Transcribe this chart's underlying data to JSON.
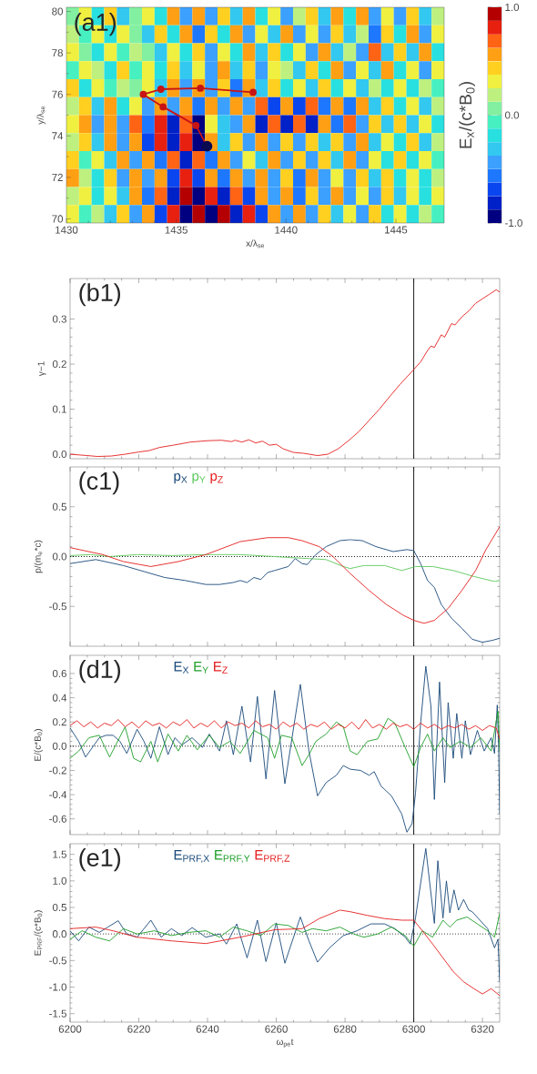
{
  "chart_data": [
    {
      "type": "heatmap",
      "clabel": "E$_{x}$/(c*B$_{0}$)",
      "categories": [
        null,
        null,
        null,
        null,
        null,
        null,
        null,
        null,
        null,
        null,
        null,
        null,
        null,
        null,
        null,
        null,
        null,
        null,
        null,
        null,
        null,
        null,
        null,
        null,
        null,
        null,
        null,
        null,
        null,
        null
      ],
      "y_categories": [
        null,
        null,
        null,
        null,
        null,
        null,
        null,
        null,
        null,
        null,
        null,
        null
      ],
      "cells": [
        [
          0.1,
          0.3,
          -0.2,
          0.4,
          -0.3,
          0.1,
          0.3,
          -0.2,
          0.5,
          -0.4,
          0.5,
          -0.5,
          0.4,
          -0.3,
          0.5,
          -0.2,
          0.3,
          -0.5,
          0.2,
          0.4,
          -0.3,
          0.5,
          -0.2,
          0.6,
          -0.5,
          0.3,
          -0.4,
          0.4,
          -0.3,
          0.2
        ],
        [
          0.2,
          -0.1,
          0.3,
          -0.2,
          0.3,
          0.0,
          -0.3,
          0.4,
          -0.2,
          0.5,
          -0.6,
          0.4,
          -0.2,
          0.6,
          -0.4,
          0.3,
          -0.3,
          0.5,
          -0.4,
          0.3,
          -0.5,
          0.4,
          -0.3,
          0.2,
          -0.6,
          0.4,
          -0.2,
          0.5,
          -0.4,
          0.3
        ],
        [
          0.3,
          0.1,
          -0.2,
          0.3,
          -0.1,
          0.2,
          0.1,
          -0.3,
          0.3,
          -0.2,
          0.4,
          -0.5,
          0.3,
          -0.2,
          0.5,
          -0.3,
          0.4,
          -0.2,
          0.3,
          -0.4,
          0.5,
          -0.3,
          0.2,
          -0.4,
          0.7,
          -0.3,
          0.4,
          -0.3,
          0.5,
          -0.2
        ],
        [
          -0.1,
          0.3,
          0.2,
          -0.2,
          0.4,
          -0.1,
          0.3,
          -0.2,
          0.4,
          -0.3,
          0.3,
          -0.4,
          0.5,
          -0.3,
          0.4,
          -0.5,
          0.3,
          0.2,
          -0.3,
          0.4,
          -0.2,
          0.5,
          -0.4,
          0.3,
          -0.3,
          0.5,
          -0.2,
          0.3,
          -0.4,
          0.3
        ],
        [
          0.4,
          -0.2,
          0.3,
          -0.1,
          0.2,
          0.0,
          0.3,
          -0.3,
          0.5,
          -0.4,
          0.5,
          -0.5,
          0.4,
          -0.6,
          0.6,
          -0.3,
          0.4,
          -0.2,
          0.3,
          -0.3,
          0.4,
          -0.2,
          0.3,
          -0.3,
          0.2,
          -0.2,
          0.3,
          -0.2,
          0.2,
          -0.1
        ],
        [
          0.2,
          0.4,
          -0.3,
          0.5,
          -0.2,
          0.3,
          -0.4,
          0.5,
          -0.5,
          0.6,
          -0.6,
          0.5,
          -0.4,
          0.6,
          -0.5,
          0.7,
          -0.7,
          0.6,
          -0.7,
          0.7,
          -0.6,
          0.5,
          -0.6,
          0.6,
          -0.3,
          0.4,
          -0.2,
          0.3,
          -0.3,
          0.2
        ],
        [
          0.3,
          0.5,
          -0.4,
          0.6,
          -0.5,
          0.7,
          -0.6,
          0.8,
          -0.8,
          0.7,
          -1.0,
          0.3,
          -0.3,
          -0.5,
          0.6,
          -0.8,
          0.7,
          -0.8,
          0.7,
          -0.8,
          0.6,
          -0.6,
          0.7,
          -0.5,
          0.4,
          -0.3,
          0.4,
          -0.3,
          0.3,
          -0.2
        ],
        [
          0.2,
          0.4,
          -0.3,
          0.5,
          -0.5,
          0.6,
          -0.7,
          0.8,
          -0.8,
          0.8,
          -0.9,
          0.5,
          -0.3,
          0.4,
          -0.5,
          0.5,
          -0.4,
          0.4,
          -0.5,
          0.4,
          -0.3,
          0.4,
          -0.4,
          0.5,
          -0.3,
          0.3,
          -0.2,
          0.4,
          -0.3,
          0.2
        ],
        [
          0.4,
          -0.1,
          0.3,
          -0.3,
          0.5,
          -0.4,
          0.6,
          -0.6,
          0.7,
          -0.8,
          0.7,
          -0.6,
          0.5,
          -0.4,
          0.3,
          -0.3,
          0.5,
          -0.5,
          0.4,
          -0.5,
          0.4,
          -0.3,
          0.5,
          -0.4,
          0.3,
          -0.2,
          0.4,
          -0.2,
          0.3,
          -0.1
        ],
        [
          0.5,
          0.2,
          -0.2,
          0.4,
          -0.4,
          0.5,
          -0.5,
          0.6,
          -0.7,
          0.8,
          -0.7,
          0.6,
          -0.6,
          0.5,
          -0.4,
          0.5,
          -0.5,
          0.4,
          -0.6,
          0.5,
          -0.4,
          0.3,
          -0.5,
          0.4,
          -0.3,
          0.4,
          -0.2,
          0.3,
          -0.2,
          0.2
        ],
        [
          0.2,
          0.3,
          -0.2,
          0.3,
          -0.3,
          0.5,
          -0.6,
          0.7,
          -0.8,
          0.9,
          -0.9,
          0.8,
          -0.8,
          0.7,
          -0.7,
          0.6,
          -0.5,
          0.5,
          -0.6,
          0.4,
          -0.5,
          0.5,
          -0.4,
          0.3,
          -0.5,
          0.4,
          -0.3,
          0.3,
          -0.2,
          0.3
        ],
        [
          0.3,
          -0.1,
          0.2,
          -0.3,
          0.4,
          -0.4,
          0.5,
          -0.7,
          0.8,
          -0.9,
          0.9,
          -0.9,
          0.9,
          -0.8,
          0.8,
          -0.7,
          0.6,
          -0.5,
          0.5,
          -0.4,
          0.4,
          -0.3,
          0.3,
          -0.4,
          0.4,
          -0.2,
          0.3,
          -0.2,
          0.2,
          -0.1
        ]
      ],
      "clim": [
        -1,
        1
      ],
      "cticks": [
        {
          "value": -1,
          "label": "-1.0"
        },
        {
          "value": 0,
          "label": "0.0"
        },
        {
          "value": 1,
          "label": "1.0"
        }
      ],
      "tick_labels": false
    },
    {
      "type": "line",
      "annotations": [
        "(a1)"
      ],
      "xlabel": "x/λ$_{se}$",
      "ylabel": "y/λ$_{se}$",
      "xlim": [
        1430,
        1447.2
      ],
      "ylim": [
        69.8,
        80.2
      ],
      "xticks": [
        1430,
        1435,
        1440,
        1445
      ],
      "yticks": [
        70,
        72,
        74,
        76,
        78,
        80
      ],
      "series": [
        {
          "type": "line",
          "color": "#c81414",
          "marker": "circle",
          "x": [
            1438.5,
            1436.1,
            1434.3,
            1433.5,
            1434.4,
            1435.9,
            1436.4
          ],
          "values": [
            76.1,
            76.3,
            76.25,
            76.0,
            75.4,
            74.5,
            73.5
          ]
        },
        {
          "type": "scatter",
          "color": "#0a0a50",
          "marker": "circle",
          "x": [
            1436.4
          ],
          "values": [
            73.5
          ]
        }
      ]
    },
    {
      "type": "line",
      "annotations": [
        "(b1)"
      ],
      "ylabel": "γ−1",
      "xlim": [
        6200,
        6325
      ],
      "ylim": [
        -0.01,
        0.39
      ],
      "xticks": [
        6200,
        6220,
        6240,
        6260,
        6280,
        6300,
        6320
      ],
      "yticks": [
        {
          "value": 0,
          "label": "0.0"
        },
        0.1,
        0.2,
        0.3
      ],
      "tick_labels": "y",
      "ref_lines": [
        {
          "axis": "x",
          "value": 6300,
          "color": "#000000"
        }
      ],
      "series": [
        {
          "color": "#e41e1e",
          "x": [
            6200,
            6205,
            6208,
            6212,
            6216,
            6220,
            6223,
            6226,
            6230,
            6235,
            6240,
            6244,
            6247,
            6248,
            6250,
            6252,
            6254,
            6256,
            6258,
            6260,
            6262,
            6265,
            6268,
            6272,
            6275,
            6278,
            6281,
            6284,
            6287,
            6290,
            6293,
            6296,
            6300,
            6302,
            6304,
            6305,
            6306,
            6308,
            6309,
            6311,
            6312,
            6314,
            6316,
            6318,
            6320,
            6322,
            6324,
            6325
          ],
          "values": [
            0.0,
            -0.003,
            -0.005,
            -0.004,
            0.0,
            0.005,
            0.008,
            0.015,
            0.02,
            0.027,
            0.03,
            0.031,
            0.028,
            0.031,
            0.027,
            0.032,
            0.025,
            0.029,
            0.02,
            0.022,
            0.012,
            0.004,
            0.002,
            -0.003,
            0.0,
            0.012,
            0.03,
            0.05,
            0.075,
            0.1,
            0.128,
            0.155,
            0.188,
            0.205,
            0.23,
            0.24,
            0.237,
            0.265,
            0.26,
            0.29,
            0.287,
            0.305,
            0.318,
            0.335,
            0.345,
            0.355,
            0.365,
            0.36
          ]
        }
      ]
    },
    {
      "type": "line",
      "annotations": [
        "(c1)"
      ],
      "ylabel": "p/(m$_{e}$*c)",
      "xlim": [
        6200,
        6325
      ],
      "ylim": [
        -0.9,
        0.9
      ],
      "xticks": [
        6200,
        6220,
        6240,
        6260,
        6280,
        6300,
        6320
      ],
      "yticks": [
        -0.5,
        {
          "value": 0,
          "label": "0.0"
        },
        0.5
      ],
      "tick_labels": "y",
      "legend": "top left",
      "ref_lines": [
        {
          "axis": "x",
          "value": 6300,
          "color": "#000000"
        },
        {
          "axis": "y",
          "value": 0,
          "color": "#000000",
          "line_style": "dotted"
        }
      ],
      "series": [
        {
          "name": "p$_{X}$",
          "color": "#1a4a7a",
          "x": [
            6200,
            6207.5,
            6215.5,
            6221.5,
            6227.5,
            6233.5,
            6239.5,
            6243.5,
            6247.5,
            6249.5,
            6251.5,
            6253.5,
            6255.5,
            6257.5,
            6259.5,
            6261.5,
            6263.5,
            6265.5,
            6267.5,
            6269,
            6271.5,
            6274.5,
            6278.5,
            6281.5,
            6285,
            6289,
            6294,
            6298,
            6300,
            6302,
            6304,
            6306,
            6308,
            6311,
            6314,
            6317,
            6320,
            6323,
            6325
          ],
          "values": [
            -0.07,
            -0.03,
            -0.09,
            -0.15,
            -0.21,
            -0.24,
            -0.28,
            -0.28,
            -0.26,
            -0.24,
            -0.26,
            -0.21,
            -0.23,
            -0.16,
            -0.14,
            -0.12,
            -0.1,
            -0.02,
            -0.07,
            -0.08,
            0.02,
            0.1,
            0.16,
            0.17,
            0.16,
            0.1,
            0.05,
            0.07,
            0.06,
            -0.07,
            -0.24,
            -0.31,
            -0.48,
            -0.62,
            -0.72,
            -0.83,
            -0.86,
            -0.84,
            -0.82
          ]
        },
        {
          "name": "p$_{Y}$",
          "color": "#5ac85a",
          "x": [
            6200,
            6206,
            6211.5,
            6219.5,
            6229.5,
            6239.5,
            6249.5,
            6259.5,
            6264,
            6269.5,
            6274.5,
            6279.5,
            6281.5,
            6285.5,
            6291.5,
            6296.5,
            6300.5,
            6305.5,
            6311.5,
            6317.5,
            6323.5,
            6325
          ],
          "values": [
            0.01,
            0.02,
            0.0,
            0.02,
            0.01,
            0.02,
            0.02,
            0.0,
            -0.01,
            -0.02,
            -0.03,
            -0.1,
            -0.12,
            -0.09,
            -0.09,
            -0.14,
            -0.1,
            -0.1,
            -0.14,
            -0.2,
            -0.25,
            -0.24
          ]
        },
        {
          "name": "p$_{Z}$",
          "color": "#e41e1e",
          "x": [
            6200,
            6209.5,
            6215.5,
            6223.5,
            6231.5,
            6239.5,
            6249.5,
            6257.5,
            6263.5,
            6267.5,
            6272.5,
            6276.5,
            6281.5,
            6287,
            6292,
            6297,
            6300,
            6303,
            6306,
            6310,
            6314,
            6318,
            6321,
            6325
          ],
          "values": [
            0.09,
            0.02,
            -0.05,
            -0.1,
            -0.05,
            0.02,
            0.15,
            0.19,
            0.19,
            0.16,
            0.1,
            0.0,
            -0.17,
            -0.34,
            -0.48,
            -0.59,
            -0.64,
            -0.67,
            -0.64,
            -0.52,
            -0.34,
            -0.14,
            0.07,
            0.3
          ]
        }
      ]
    },
    {
      "type": "line",
      "annotations": [
        "(d1)"
      ],
      "ylabel": "E/(c*B$_{0}$)",
      "xlim": [
        6200,
        6325
      ],
      "ylim": [
        -0.73,
        0.75
      ],
      "xticks": [
        6200,
        6220,
        6240,
        6260,
        6280,
        6300,
        6320
      ],
      "yticks": [
        -0.6,
        -0.4,
        -0.2,
        {
          "value": 0,
          "label": "0.0"
        },
        0.2,
        0.4,
        0.6
      ],
      "tick_labels": "y",
      "legend": "top left",
      "ref_lines": [
        {
          "axis": "x",
          "value": 6300,
          "color": "#000000"
        },
        {
          "axis": "y",
          "value": 0,
          "color": "#000000",
          "line_style": "dotted"
        }
      ],
      "series": [
        {
          "name": "E$_{X}$",
          "color": "#1a4a7a",
          "x": [
            6200,
            6202.5,
            6204.5,
            6206.5,
            6208.5,
            6210.5,
            6212.5,
            6214.5,
            6216.5,
            6219.5,
            6221.5,
            6223.5,
            6226,
            6228.5,
            6230.5,
            6232.5,
            6235.5,
            6238.5,
            6240.5,
            6243.5,
            6245.5,
            6247.5,
            6250,
            6252.5,
            6254.5,
            6257,
            6259.5,
            6262.5,
            6267,
            6269.5,
            6272,
            6274.5,
            6277.5,
            6279.5,
            6281.5,
            6284.5,
            6287,
            6288.5,
            6290.5,
            6293.5,
            6296.5,
            6298,
            6299.5,
            6300.5,
            6302,
            6303.5,
            6305,
            6306,
            6307.5,
            6309,
            6310,
            6311.5,
            6312.5,
            6314,
            6315,
            6316.5,
            6318.5,
            6320.5,
            6322.5,
            6323.5,
            6324.3,
            6324.7,
            6325
          ],
          "values": [
            0.15,
            0.04,
            -0.09,
            -0.01,
            0.07,
            0.09,
            0.09,
            0.04,
            -0.06,
            0.14,
            0.04,
            -0.1,
            0.16,
            -0.07,
            0.07,
            0.01,
            0.07,
            -0.01,
            0.1,
            -0.04,
            0.21,
            -0.07,
            0.33,
            -0.13,
            0.41,
            -0.27,
            0.46,
            -0.31,
            0.51,
            -0.04,
            -0.41,
            -0.3,
            -0.24,
            -0.16,
            -0.19,
            -0.2,
            -0.24,
            -0.21,
            -0.33,
            -0.41,
            -0.56,
            -0.71,
            -0.64,
            -0.39,
            0.19,
            0.66,
            0.33,
            -0.44,
            0.53,
            -0.3,
            0.36,
            -0.1,
            0.27,
            -0.1,
            0.21,
            -0.07,
            0.13,
            -0.04,
            0.07,
            -0.06,
            0.34,
            -0.01,
            -0.56
          ]
        },
        {
          "name": "E$_{Y}$",
          "color": "#1e9e28",
          "x": [
            6200,
            6202.5,
            6205.5,
            6208.5,
            6211.5,
            6216,
            6218.5,
            6220.5,
            6223.5,
            6225.5,
            6228.5,
            6231.5,
            6234,
            6237,
            6240.5,
            6243.5,
            6246.5,
            6249.5,
            6253.5,
            6257.5,
            6259.5,
            6261.5,
            6264.5,
            6267.5,
            6269.5,
            6271.5,
            6274.5,
            6277.5,
            6279.5,
            6281.5,
            6283.5,
            6286.5,
            6289.5,
            6292.5,
            6294.5,
            6297.5,
            6300,
            6302,
            6304,
            6306,
            6308.5,
            6310.5,
            6313.5,
            6316.5,
            6319.5,
            6322.5,
            6324.5,
            6325
          ],
          "values": [
            -0.1,
            -0.04,
            0.07,
            0.09,
            -0.09,
            0.16,
            -0.1,
            -0.13,
            0.04,
            -0.13,
            0.1,
            -0.04,
            0.09,
            -0.03,
            0.09,
            -0.01,
            0.04,
            -0.06,
            0.13,
            0.07,
            -0.1,
            0.09,
            0.07,
            -0.16,
            -0.07,
            0.04,
            0.1,
            0.2,
            0.16,
            -0.04,
            -0.07,
            0.04,
            0.06,
            0.23,
            0.19,
            -0.01,
            -0.17,
            -0.01,
            0.1,
            -0.04,
            0.07,
            -0.01,
            0.04,
            -0.01,
            0.07,
            -0.04,
            0.29,
            -0.04
          ]
        },
        {
          "name": "E$_{Z}$",
          "color": "#e41e1e",
          "x": [
            6200,
            6202,
            6204,
            6206,
            6208,
            6210,
            6212,
            6214,
            6216,
            6218,
            6220,
            6222,
            6224,
            6226,
            6228,
            6230,
            6232,
            6234,
            6236,
            6238,
            6240,
            6242,
            6244,
            6246,
            6248,
            6250,
            6252,
            6254,
            6256,
            6258,
            6260,
            6262,
            6264,
            6266,
            6268,
            6270,
            6272,
            6274,
            6276,
            6278,
            6280,
            6282,
            6284,
            6286,
            6288,
            6290,
            6292,
            6294,
            6296,
            6298,
            6300,
            6302,
            6304,
            6306,
            6308,
            6310,
            6312,
            6314,
            6316,
            6318,
            6320,
            6322,
            6324,
            6325
          ],
          "values": [
            0.17,
            0.21,
            0.16,
            0.2,
            0.15,
            0.19,
            0.17,
            0.22,
            0.16,
            0.2,
            0.15,
            0.21,
            0.17,
            0.19,
            0.15,
            0.2,
            0.17,
            0.22,
            0.15,
            0.19,
            0.16,
            0.21,
            0.15,
            0.2,
            0.17,
            0.19,
            0.15,
            0.21,
            0.16,
            0.18,
            0.14,
            0.2,
            0.16,
            0.19,
            0.14,
            0.18,
            0.16,
            0.2,
            0.14,
            0.18,
            0.15,
            0.2,
            0.14,
            0.22,
            0.15,
            0.18,
            0.14,
            0.19,
            0.16,
            0.18,
            0.14,
            0.19,
            0.15,
            0.18,
            0.14,
            0.17,
            0.15,
            0.18,
            0.14,
            0.17,
            0.13,
            0.17,
            0.15,
            0.06
          ]
        }
      ]
    },
    {
      "type": "line",
      "annotations": [
        "(e1)"
      ],
      "xlabel": "ω$_{pe}$t",
      "ylabel": "E$_{PRF}$/(c*B$_{0}$)",
      "xlim": [
        6200,
        6325
      ],
      "ylim": [
        -1.66,
        1.7
      ],
      "xticks": [
        6200,
        6220,
        6240,
        6260,
        6280,
        6300,
        6320
      ],
      "yticks": [
        -1.5,
        {
          "value": -1,
          "label": "-1.0"
        },
        -0.5,
        {
          "value": 0,
          "label": "0.0"
        },
        0.5,
        {
          "value": 1,
          "label": "1.0"
        },
        1.5
      ],
      "legend": "top left",
      "ref_lines": [
        {
          "axis": "x",
          "value": 6300,
          "color": "#000000"
        },
        {
          "axis": "y",
          "value": 0,
          "color": "#000000",
          "line_style": "dotted"
        }
      ],
      "series": [
        {
          "name": "E$_{PRF,X}$",
          "color": "#1a4a7a",
          "x": [
            6200,
            6202.5,
            6205.5,
            6208.5,
            6211,
            6214,
            6216.5,
            6219.5,
            6223.5,
            6226.5,
            6229.5,
            6232.5,
            6235.5,
            6239.5,
            6243.5,
            6245.5,
            6248.5,
            6251.5,
            6254.5,
            6257,
            6260,
            6262.5,
            6267,
            6269.5,
            6272,
            6275.5,
            6279.5,
            6283.5,
            6287.5,
            6291.5,
            6294.5,
            6297.5,
            6299,
            6300.5,
            6303.5,
            6306,
            6307,
            6308.5,
            6309.5,
            6310.5,
            6311.7,
            6313,
            6314.5,
            6316,
            6317,
            6321.5,
            6323.5,
            6324.5,
            6325
          ],
          "values": [
            0.06,
            -0.13,
            0.13,
            0.03,
            0.13,
            0.25,
            0.0,
            -0.06,
            0.26,
            -0.06,
            0.1,
            -0.03,
            0.12,
            -0.06,
            0.0,
            -0.19,
            0.19,
            -0.45,
            0.26,
            -0.52,
            0.21,
            -0.55,
            0.32,
            -0.13,
            -0.53,
            -0.26,
            -0.03,
            0.06,
            0.19,
            0.19,
            0.1,
            -0.06,
            -0.19,
            0.3,
            1.61,
            0.2,
            1.38,
            0.3,
            1.0,
            0.4,
            0.83,
            0.45,
            0.65,
            0.45,
            0.42,
            0.1,
            -0.26,
            -0.1,
            -0.9
          ]
        },
        {
          "name": "E$_{PRF,Y}$",
          "color": "#1e9e28",
          "x": [
            6200,
            6203.5,
            6207.5,
            6211.5,
            6215.5,
            6219.5,
            6224.5,
            6229.5,
            6234.5,
            6239.5,
            6243.5,
            6247.5,
            6251.5,
            6255.5,
            6259.5,
            6263.5,
            6267.5,
            6270.5,
            6274.5,
            6278.5,
            6282.5,
            6285.5,
            6289.5,
            6293.5,
            6297.5,
            6300,
            6302.5,
            6305.5,
            6308.5,
            6310.5,
            6312.5,
            6315.5,
            6318.5,
            6321.5,
            6323.5,
            6325
          ],
          "values": [
            -0.1,
            0.06,
            -0.06,
            -0.13,
            0.1,
            0.0,
            0.06,
            -0.03,
            0.03,
            0.06,
            -0.06,
            0.13,
            0.06,
            -0.03,
            0.19,
            0.16,
            0.03,
            0.1,
            0.06,
            0.13,
            0.0,
            -0.06,
            0.0,
            0.13,
            -0.03,
            -0.23,
            0.06,
            -0.06,
            0.26,
            0.13,
            0.26,
            0.32,
            0.19,
            0.06,
            -0.06,
            0.39
          ]
        },
        {
          "name": "E$_{PRF,Z}$",
          "color": "#e41e1e",
          "x": [
            6200,
            6207.5,
            6212.5,
            6219.5,
            6229.5,
            6239.5,
            6249.5,
            6259.5,
            6267.5,
            6272.5,
            6278.5,
            6281.5,
            6286.5,
            6291.5,
            6296.5,
            6300,
            6302.5,
            6305.5,
            6308.5,
            6311.5,
            6314.5,
            6317.5,
            6320,
            6322.5,
            6325
          ],
          "values": [
            0.1,
            0.13,
            0.06,
            -0.06,
            -0.13,
            -0.18,
            -0.06,
            0.08,
            0.1,
            0.29,
            0.45,
            0.42,
            0.35,
            0.29,
            0.26,
            0.26,
            0.06,
            -0.19,
            -0.45,
            -0.71,
            -0.9,
            -1.03,
            -1.13,
            -1.03,
            -1.16
          ]
        }
      ]
    }
  ]
}
